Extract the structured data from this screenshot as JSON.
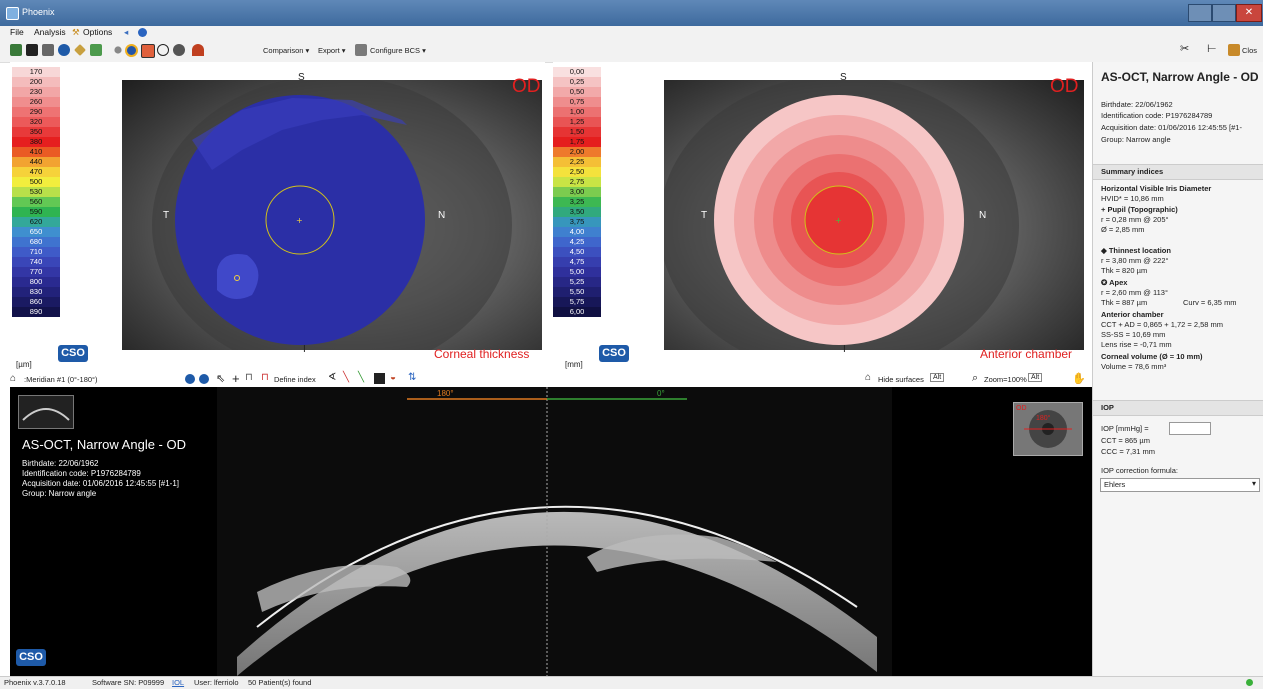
{
  "window": {
    "title": "Phoenix"
  },
  "menu": {
    "file": "File",
    "analysis": "Analysis",
    "options": "Options"
  },
  "toolbar": {
    "comparison": "Comparison ▾",
    "export": "Export ▾",
    "configure": "Configure BCS ▾",
    "close": "Clos"
  },
  "left_map": {
    "od": "OD",
    "label": "Corneal thickness",
    "unit": "[µm]",
    "orient": {
      "s": "S",
      "t": "T",
      "n": "N",
      "i": "I"
    },
    "scale": [
      {
        "v": "170",
        "c": "#f7d7d7"
      },
      {
        "v": "200",
        "c": "#f4bcbc"
      },
      {
        "v": "230",
        "c": "#f2a6a6"
      },
      {
        "v": "260",
        "c": "#f08e8e"
      },
      {
        "v": "290",
        "c": "#ee7373"
      },
      {
        "v": "320",
        "c": "#ec5a5a"
      },
      {
        "v": "350",
        "c": "#e83a3a"
      },
      {
        "v": "380",
        "c": "#e61f1f"
      },
      {
        "v": "410",
        "c": "#ea5b24"
      },
      {
        "v": "440",
        "c": "#f2a331"
      },
      {
        "v": "470",
        "c": "#f6d23a"
      },
      {
        "v": "500",
        "c": "#f2ee3d"
      },
      {
        "v": "530",
        "c": "#b8e04a"
      },
      {
        "v": "560",
        "c": "#62c854"
      },
      {
        "v": "590",
        "c": "#2fb451"
      },
      {
        "v": "620",
        "c": "#33a89a"
      },
      {
        "v": "650",
        "c": "#3f8fcf"
      },
      {
        "v": "680",
        "c": "#3f73cf"
      },
      {
        "v": "710",
        "c": "#3f5bc8"
      },
      {
        "v": "740",
        "c": "#3a46b8"
      },
      {
        "v": "770",
        "c": "#3336a5"
      },
      {
        "v": "800",
        "c": "#2a2a90"
      },
      {
        "v": "830",
        "c": "#22227a"
      },
      {
        "v": "860",
        "c": "#1a1a62"
      },
      {
        "v": "890",
        "c": "#12124a"
      }
    ]
  },
  "right_map": {
    "od": "OD",
    "label": "Anterior chamber",
    "unit": "[mm]",
    "orient": {
      "s": "S",
      "t": "T",
      "n": "N",
      "i": "I"
    },
    "scale": [
      {
        "v": "0,00",
        "c": "#f9e0e0"
      },
      {
        "v": "0,25",
        "c": "#f5c3c3"
      },
      {
        "v": "0,50",
        "c": "#f2a9a9"
      },
      {
        "v": "0,75",
        "c": "#ef8d8d"
      },
      {
        "v": "1,00",
        "c": "#ec7171"
      },
      {
        "v": "1,25",
        "c": "#e95454"
      },
      {
        "v": "1,50",
        "c": "#e63434"
      },
      {
        "v": "1,75",
        "c": "#e51e1e"
      },
      {
        "v": "2,00",
        "c": "#ee7a2c"
      },
      {
        "v": "2,25",
        "c": "#f4bf36"
      },
      {
        "v": "2,50",
        "c": "#f4e23c"
      },
      {
        "v": "2,75",
        "c": "#c9e445"
      },
      {
        "v": "3,00",
        "c": "#7ccc4f"
      },
      {
        "v": "3,25",
        "c": "#3db852"
      },
      {
        "v": "3,50",
        "c": "#31a97e"
      },
      {
        "v": "3,75",
        "c": "#3796bc"
      },
      {
        "v": "4,00",
        "c": "#3f80cf"
      },
      {
        "v": "4,25",
        "c": "#3f66cc"
      },
      {
        "v": "4,50",
        "c": "#3c50bf"
      },
      {
        "v": "4,75",
        "c": "#363eae"
      },
      {
        "v": "5,00",
        "c": "#2f309c"
      },
      {
        "v": "5,25",
        "c": "#272786"
      },
      {
        "v": "5,50",
        "c": "#1f1f70"
      },
      {
        "v": "5,75",
        "c": "#171758"
      },
      {
        "v": "6,00",
        "c": "#101042"
      }
    ]
  },
  "midbar": {
    "meridian": ":Meridian #1 (0°-180°)",
    "define_index": "Define index",
    "hide_surfaces": "Hide surfaces",
    "zoom": "Zoom=100%",
    "alt": "Alt"
  },
  "oct": {
    "title": "AS-OCT, Narrow Angle - OD",
    "birthdate": "Birthdate: 22/06/1962",
    "id_code": "Identification code: P1976284789",
    "acq_date": "Acquisition date: 01/06/2016 12:45:55 [#1-1]",
    "group": "Group: Narrow angle",
    "angle_left": "180°",
    "angle_right": "0°",
    "mini_od": "OD",
    "mini_180": "180°"
  },
  "right_panel": {
    "title": "AS-OCT, Narrow Angle - OD",
    "birthdate": "Birthdate: 22/06/1962",
    "id_code": "Identification code: P1976284789",
    "acq_date": "Acquisition date: 01/06/2016 12:45:55 [#1-",
    "group": "Group: Narrow angle",
    "summary_header": "Summary indices",
    "hvid_title": "Horizontal Visible Iris Diameter",
    "hvid": "HVID* = 10,86 mm",
    "pupil_title": "+ Pupil (Topographic)",
    "pupil_r": "r = 0,28 mm @ 205°",
    "pupil_d": "Ø = 2,85 mm",
    "thin_title": "◆ Thinnest location",
    "thin_r": "r = 3,80 mm @ 222°",
    "thin_thk": "Thk = 820 µm",
    "apex_title": "✪ Apex",
    "apex_r": "r = 2,60 mm @ 113°",
    "apex_thk": "Thk = 887 µm",
    "apex_curv": "Curv = 6,35 mm",
    "ac_title": "Anterior chamber",
    "ac_cct": "CCT + AD = 0,865 + 1,72 = 2,58 mm",
    "ac_ss": "SS-SS = 10,69 mm",
    "ac_lens": "Lens rise = -0,71 mm",
    "cv_title": "Corneal volume (Ø = 10 mm)",
    "cv": "Volume = 78,6 mm³",
    "iop_header": "IOP",
    "iop": "IOP [mmHg] =",
    "cct": "CCT = 865 µm",
    "ccc": "CCC = 7,31 mm",
    "formula_label": "IOP correction formula:",
    "formula_value": "Ehlers"
  },
  "statusbar": {
    "app": "Phoenix  v.3.7.0.18",
    "sn": "Software SN: P09999",
    "iol": "IOL",
    "user": "User: lferriolo",
    "patients": "50 Patient(s) found"
  }
}
